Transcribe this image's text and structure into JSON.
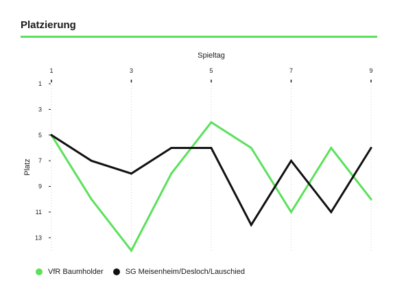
{
  "header": {
    "title": "Platzierung",
    "accent_color": "#5ae15a"
  },
  "chart_data": {
    "type": "line",
    "xlabel": "Spieltag",
    "ylabel": "Platz",
    "x": [
      1,
      2,
      3,
      4,
      5,
      6,
      7,
      8,
      9
    ],
    "x_ticks": [
      1,
      3,
      5,
      7,
      9
    ],
    "y_ticks": [
      1,
      3,
      5,
      7,
      9,
      11,
      13
    ],
    "xlim": [
      1,
      9
    ],
    "ylim": [
      14,
      1
    ],
    "y_inverted": true,
    "grid": "vertical dotted",
    "legend_position": "bottom-left",
    "series": [
      {
        "name": "VfR Baumholder",
        "color": "#5ae15a",
        "values": [
          5,
          10,
          14,
          8,
          4,
          6,
          11,
          6,
          10
        ]
      },
      {
        "name": "SG Meisenheim/Desloch/Lauschied",
        "color": "#111111",
        "values": [
          5,
          7,
          8,
          6,
          6,
          12,
          7,
          11,
          6
        ]
      }
    ]
  }
}
